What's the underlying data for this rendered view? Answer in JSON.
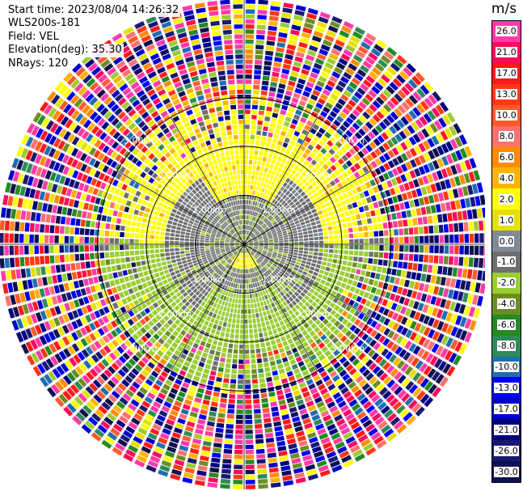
{
  "info": {
    "start_time": "Start time: 2023/08/04 14:26:32",
    "instrument": "WLS200s-181",
    "field": "Field: VEL",
    "elevation": "Elevation(deg): 35.30",
    "nrays": "NRays: 120"
  },
  "colorbar": {
    "unit": "m/s",
    "ticks": [
      "26.0",
      "21.0",
      "17.0",
      "13.0",
      "10.0",
      "8.0",
      "6.0",
      "4.0",
      "2.0",
      "1.0",
      "0.0",
      "-1.0",
      "-2.0",
      "-4.0",
      "-6.0",
      "-8.0",
      "-10.0",
      "-13.0",
      "-17.0",
      "-21.0",
      "-26.0",
      "-30.0"
    ],
    "colors": [
      "#ff3aa8",
      "#ff0a5a",
      "#ff1a1a",
      "#ff3a12",
      "#ff5a2a",
      "#ff7070",
      "#ff8c00",
      "#ffb300",
      "#ffff00",
      "#e6e000",
      "#7f8a99",
      "#6e6e6e",
      "#9acd32",
      "#6b8e23",
      "#228b22",
      "#2e8b57",
      "#1e6fb0",
      "#0000ff",
      "#0000cd",
      "#000080",
      "#191970",
      "#101050"
    ]
  },
  "chart_data": {
    "type": "ppi",
    "field": "VEL",
    "units": "m/s",
    "elevation_deg": 35.3,
    "n_rays": 120,
    "range_rings_km": [
      1.0,
      2.0,
      3.0
    ],
    "range_ring_labels": [
      "1.00km",
      "2.00km",
      "3.00km"
    ],
    "color_scale_m_s": [
      -30.0,
      -26.0,
      -21.0,
      -17.0,
      -13.0,
      -10.0,
      -8.0,
      -6.0,
      -4.0,
      -2.0,
      -1.0,
      0.0,
      1.0,
      2.0,
      4.0,
      6.0,
      8.0,
      10.0,
      13.0,
      17.0,
      21.0,
      26.0
    ],
    "grid": true
  }
}
